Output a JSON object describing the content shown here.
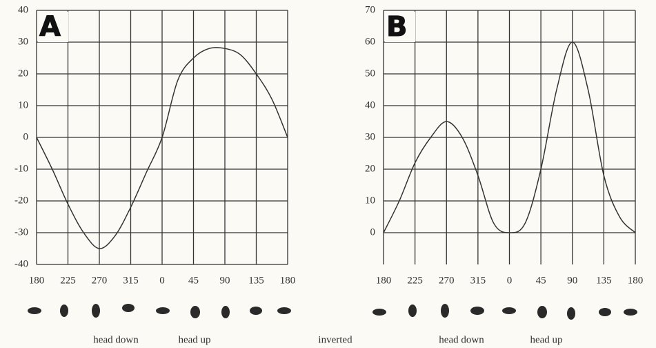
{
  "chart_data": [
    {
      "type": "line",
      "panel_label": "A",
      "categories": [
        "180",
        null,
        "225",
        null,
        "270",
        null,
        "315",
        null,
        "0",
        null,
        "45",
        null,
        "90",
        null,
        "135",
        null,
        "180"
      ],
      "series": [
        {
          "color": "#333333",
          "values": [
            0,
            -10,
            -21,
            -30,
            -35,
            -31,
            -22,
            -11,
            0,
            18,
            25,
            28,
            28,
            26,
            20,
            12,
            0
          ]
        }
      ],
      "ylim": [
        -40,
        40
      ],
      "yticks": [
        -40,
        -30,
        -20,
        -10,
        0,
        10,
        20,
        30,
        40
      ],
      "grid": true
    },
    {
      "type": "line",
      "panel_label": "B",
      "categories": [
        "180",
        null,
        "225",
        null,
        "270",
        null,
        "315",
        null,
        "0",
        null,
        "45",
        null,
        "90",
        null,
        "135",
        null,
        "180"
      ],
      "series": [
        {
          "color": "#333333",
          "values": [
            0,
            10,
            22,
            30,
            35,
            30,
            18,
            3,
            0,
            3,
            20,
            45,
            60,
            45,
            18,
            5,
            0
          ]
        }
      ],
      "ylim": [
        -10,
        70
      ],
      "yticks": [
        0,
        10,
        20,
        30,
        40,
        50,
        60,
        70
      ],
      "grid": true
    }
  ],
  "labels": {
    "a_head_down": "head down",
    "a_head_up": "head up",
    "inverted": "inverted",
    "b_head_down": "head down",
    "b_head_up": "head up"
  }
}
